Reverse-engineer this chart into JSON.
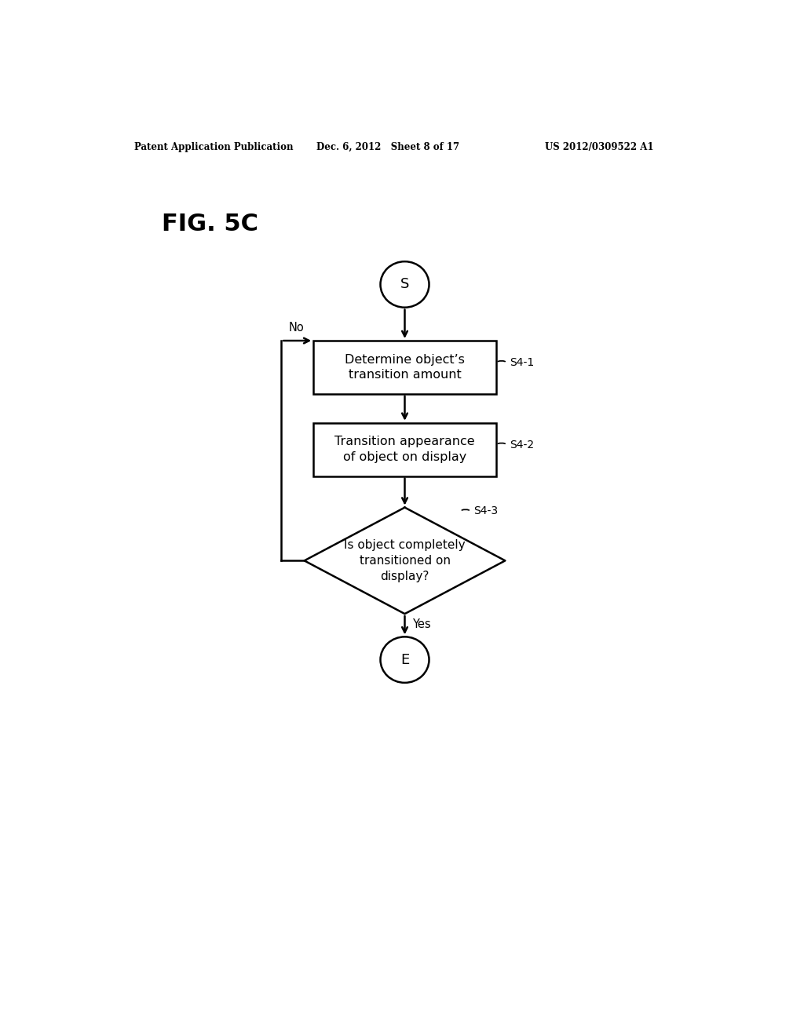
{
  "bg_color": "#ffffff",
  "header_left": "Patent Application Publication",
  "header_mid": "Dec. 6, 2012   Sheet 8 of 17",
  "header_right": "US 2012/0309522 A1",
  "fig_label": "FIG. 5C",
  "start_label": "S",
  "end_label": "E",
  "box1_text": "Determine object’s\ntransition amount",
  "box1_ref": "S4-1",
  "box2_text": "Transition appearance\nof object on display",
  "box2_ref": "S4-2",
  "diamond_text": "Is object completely\ntransitioned on\ndisplay?",
  "diamond_ref": "S4-3",
  "no_label": "No",
  "yes_label": "Yes",
  "line_color": "#000000",
  "text_color": "#000000",
  "lw": 1.8
}
